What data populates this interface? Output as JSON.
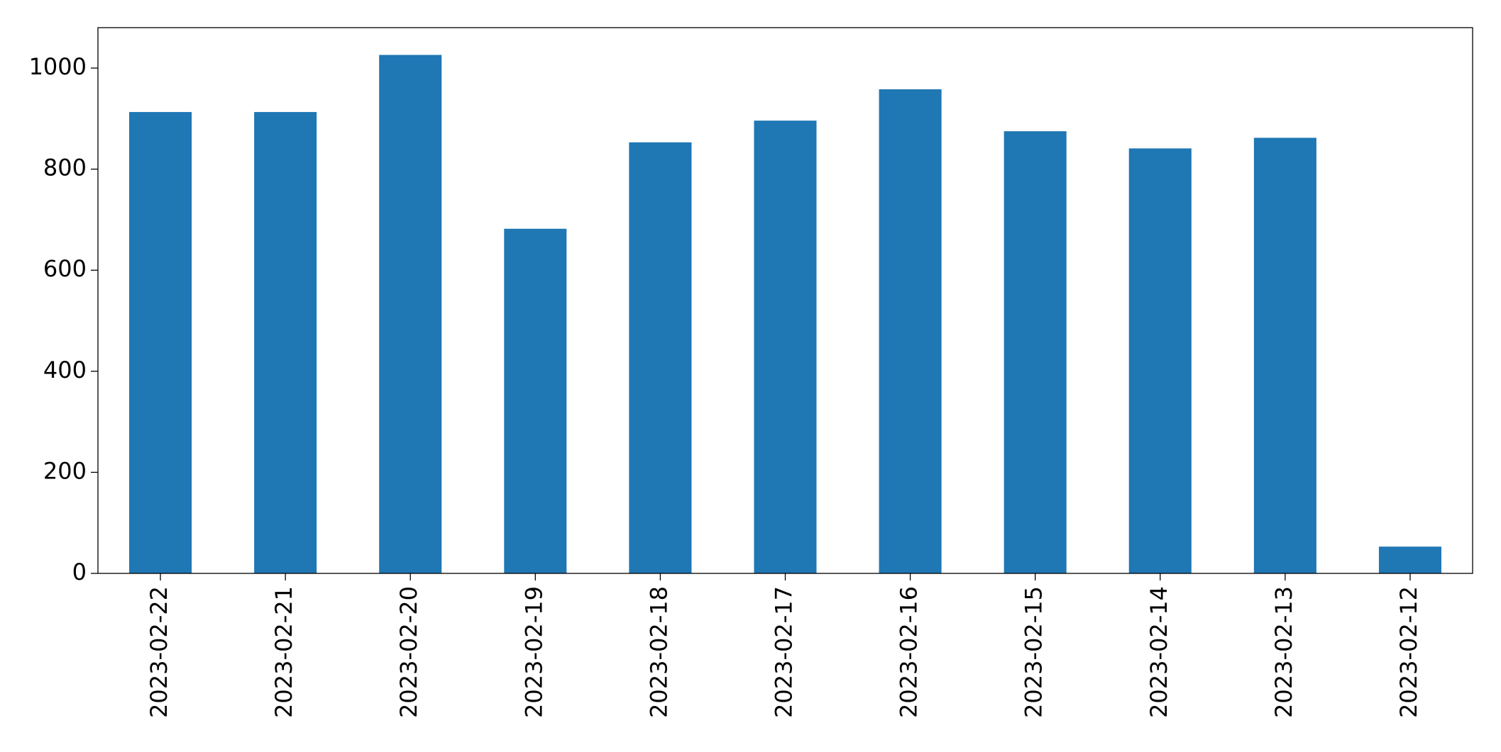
{
  "chart_data": {
    "type": "bar",
    "categories": [
      "2023-02-22",
      "2023-02-21",
      "2023-02-20",
      "2023-02-19",
      "2023-02-18",
      "2023-02-17",
      "2023-02-16",
      "2023-02-15",
      "2023-02-14",
      "2023-02-13",
      "2023-02-12"
    ],
    "values": [
      913,
      913,
      1026,
      682,
      853,
      896,
      958,
      875,
      841,
      862,
      53
    ],
    "color": "#1f77b4",
    "ylim": [
      0,
      1080
    ],
    "yticks": [
      0,
      200,
      400,
      600,
      800,
      1000
    ],
    "grid": false
  }
}
